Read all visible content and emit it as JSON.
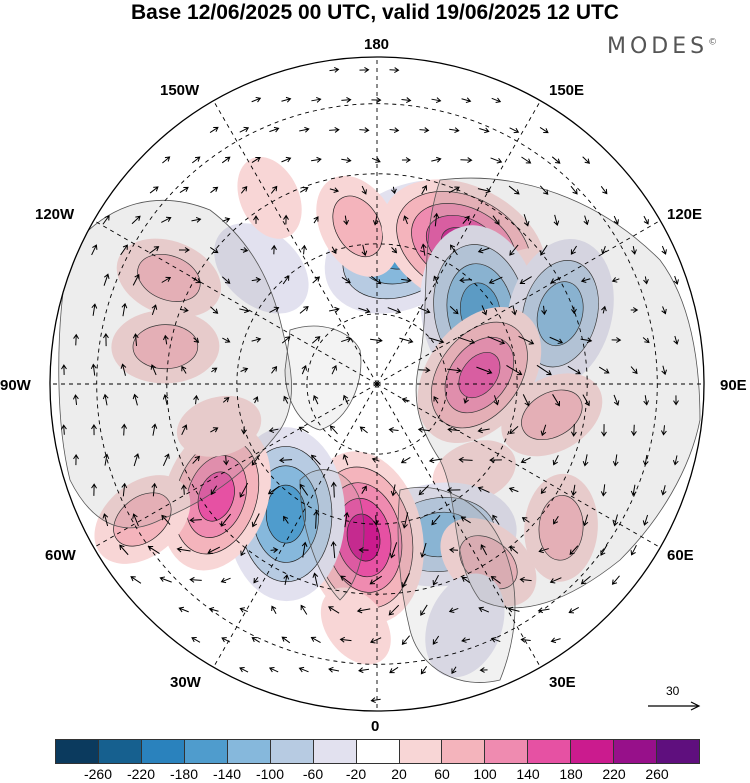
{
  "title": "Base 12/06/2025 00 UTC, valid 19/06/2025 12 UTC",
  "brand": "MODES",
  "brand_mark": "©",
  "longitude_labels": {
    "180": "180",
    "150E": "150E",
    "120E": "120E",
    "90E": "90E",
    "60E": "60E",
    "30E": "30E",
    "0": "0",
    "30W": "30W",
    "60W": "60W",
    "90W": "90W",
    "120W": "120W",
    "150W": "150W"
  },
  "reference_vector": {
    "label": "30"
  },
  "colorbar": {
    "colors": [
      "#0b3a5e",
      "#16608f",
      "#2a82bd",
      "#4f9ccd",
      "#86b8dc",
      "#b7cbe2",
      "#e2e1ef",
      "#ffffff",
      "#f8d6d6",
      "#f4b4bc",
      "#ef8bb0",
      "#e651a3",
      "#cb1b8e",
      "#97108a",
      "#5f0f7e"
    ],
    "tick_labels": [
      "-260",
      "-220",
      "-180",
      "-140",
      "-100",
      "-60",
      "-20",
      "20",
      "60",
      "100",
      "140",
      "180",
      "220",
      "260"
    ]
  },
  "anomaly_centers": [
    {
      "lon": 168,
      "lat": 60,
      "value": -180
    },
    {
      "lon": -173,
      "lat": 56,
      "value": 60
    },
    {
      "lon": 148,
      "lat": 55,
      "value": 180
    },
    {
      "lon": 118,
      "lat": 48,
      "value": 60
    },
    {
      "lon": 125,
      "lat": 63,
      "value": -180
    },
    {
      "lon": 111,
      "lat": 48,
      "value": -140
    },
    {
      "lon": 95,
      "lat": 68,
      "value": 140
    },
    {
      "lon": 80,
      "lat": 52,
      "value": 60
    },
    {
      "lon": 48,
      "lat": 62,
      "value": 20
    },
    {
      "lon": 23,
      "lat": 55,
      "value": -140
    },
    {
      "lon": 32,
      "lat": 45,
      "value": 60
    },
    {
      "lon": 52,
      "lat": 40,
      "value": 60
    },
    {
      "lon": -5,
      "lat": 57,
      "value": 180
    },
    {
      "lon": -35,
      "lat": 56,
      "value": -180
    },
    {
      "lon": -55,
      "lat": 48,
      "value": 140
    },
    {
      "lon": -60,
      "lat": 32,
      "value": 60
    },
    {
      "lon": -75,
      "lat": 55,
      "value": 20
    },
    {
      "lon": -100,
      "lat": 44,
      "value": 60
    },
    {
      "lon": -117,
      "lat": 40,
      "value": 60
    },
    {
      "lon": -135,
      "lat": 55,
      "value": -60
    },
    {
      "lon": -150,
      "lat": 44,
      "value": 20
    },
    {
      "lon": -5,
      "lat": 38,
      "value": 20
    },
    {
      "lon": 20,
      "lat": 35,
      "value": -60
    }
  ]
}
